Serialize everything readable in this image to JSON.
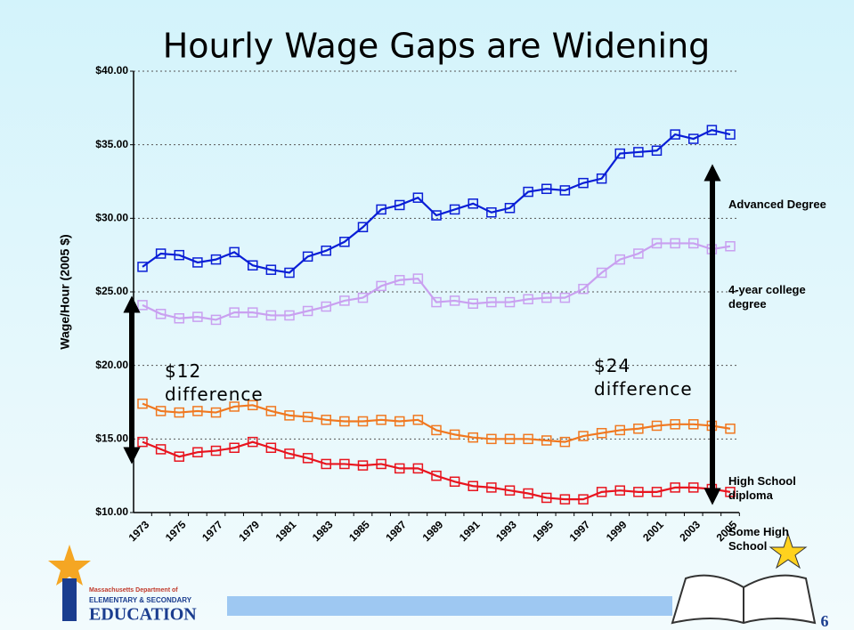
{
  "chart_data": {
    "type": "line",
    "title": "Hourly Wage Gaps are Widening",
    "y_label": "Wage/Hour (2005 $)",
    "categories": [
      "1973",
      null,
      "1975",
      null,
      "1977",
      null,
      "1979",
      null,
      "1981",
      null,
      "1983",
      null,
      "1985",
      null,
      "1987",
      null,
      "1989",
      null,
      "1991",
      null,
      "1993",
      null,
      "1995",
      null,
      "1997",
      null,
      "1999",
      null,
      "2001",
      null,
      "2003",
      null,
      "2005"
    ],
    "ylim": [
      10,
      40
    ],
    "yticks": [
      {
        "value": 10,
        "label": "$10.00"
      },
      {
        "value": 15,
        "label": "$15.00"
      },
      {
        "value": 20,
        "label": "$20.00"
      },
      {
        "value": 25,
        "label": "$25.00"
      },
      {
        "value": 30,
        "label": "$30.00"
      },
      {
        "value": 35,
        "label": "$35.00"
      },
      {
        "value": 40,
        "label": "$40.00"
      }
    ],
    "grid": true,
    "series": [
      {
        "name": "Advanced Degree",
        "color": "#0a1ed6",
        "values": [
          26.7,
          27.6,
          27.5,
          27.0,
          27.2,
          27.7,
          26.8,
          26.5,
          26.3,
          27.4,
          27.8,
          28.4,
          29.4,
          30.6,
          30.9,
          31.4,
          30.2,
          30.6,
          31.0,
          30.4,
          30.7,
          31.8,
          32.0,
          31.9,
          32.4,
          32.7,
          34.4,
          34.5,
          34.6,
          35.7,
          35.4,
          36.0,
          35.7
        ]
      },
      {
        "name": "4-year college degree",
        "color": "#c9a0f0",
        "values": [
          24.1,
          23.5,
          23.2,
          23.3,
          23.1,
          23.6,
          23.6,
          23.4,
          23.4,
          23.7,
          24.0,
          24.4,
          24.6,
          25.4,
          25.8,
          25.9,
          24.3,
          24.4,
          24.2,
          24.3,
          24.3,
          24.5,
          24.6,
          24.6,
          25.2,
          26.3,
          27.2,
          27.6,
          28.3,
          28.3,
          28.3,
          27.9,
          28.1
        ]
      },
      {
        "name": "High School diploma",
        "color": "#f07820",
        "values": [
          17.4,
          16.9,
          16.8,
          16.9,
          16.8,
          17.2,
          17.3,
          16.9,
          16.6,
          16.5,
          16.3,
          16.2,
          16.2,
          16.3,
          16.2,
          16.3,
          15.6,
          15.3,
          15.1,
          15.0,
          15.0,
          15.0,
          14.9,
          14.8,
          15.2,
          15.4,
          15.6,
          15.7,
          15.9,
          16.0,
          16.0,
          15.9,
          15.7
        ]
      },
      {
        "name": "Some High School",
        "color": "#e8141e",
        "values": [
          14.8,
          14.3,
          13.8,
          14.1,
          14.2,
          14.4,
          14.8,
          14.4,
          14.0,
          13.7,
          13.3,
          13.3,
          13.2,
          13.3,
          13.0,
          13.0,
          12.5,
          12.1,
          11.8,
          11.7,
          11.5,
          11.3,
          11.0,
          10.9,
          10.9,
          11.4,
          11.5,
          11.4,
          11.4,
          11.7,
          11.7,
          11.6,
          11.4
        ]
      }
    ],
    "annotations": [
      "$12 difference",
      "$24 difference"
    ]
  },
  "footer": {
    "logo_line1": "Massachusetts Department of",
    "logo_line2": "ELEMENTARY & SECONDARY",
    "logo_line3": "EDUCATION",
    "page_number": "6"
  }
}
